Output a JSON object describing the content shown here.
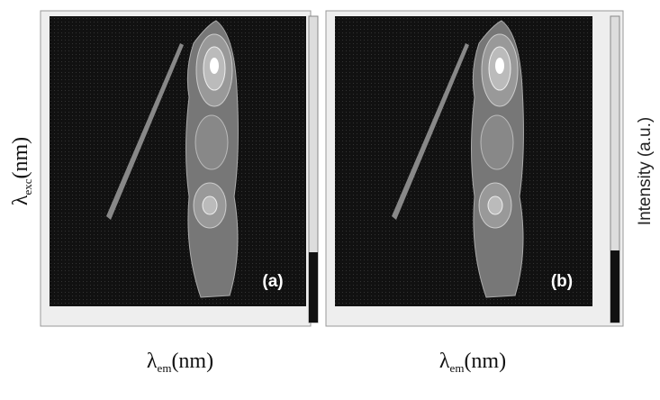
{
  "figure": {
    "y_label": {
      "symbol": "λ",
      "subscript": "exc",
      "unit": "(nm)"
    },
    "x_label": {
      "symbol": "λ",
      "subscript": "em",
      "unit": "(nm)"
    },
    "colorbar_label": "Intensity (a.u.)",
    "panels": [
      {
        "label": "(a)"
      },
      {
        "label": "(b)"
      }
    ]
  }
}
